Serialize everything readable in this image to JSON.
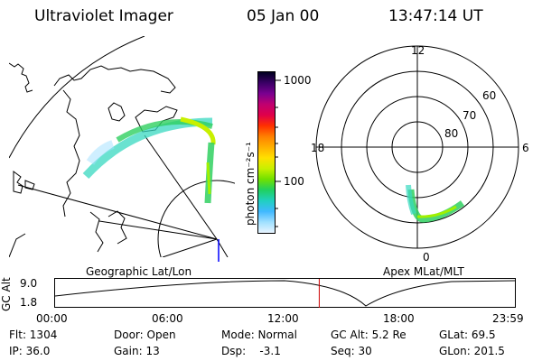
{
  "header": {
    "instrument": "Ultraviolet Imager",
    "date": "05 Jan 00",
    "time": "13:47:14 UT"
  },
  "colorbar": {
    "unit_label": "photon cm⁻²s⁻¹",
    "ticks": [
      "1000",
      "100"
    ],
    "colors": [
      "#000020",
      "#3a0066",
      "#7a0090",
      "#c00070",
      "#e0004a",
      "#ff3000",
      "#ff8000",
      "#ffb000",
      "#ffe000",
      "#c8f000",
      "#70e000",
      "#20d060",
      "#20d0c0",
      "#40b8ff",
      "#a0e0ff",
      "#e8f4ff"
    ]
  },
  "panels": {
    "left_label": "Geographic Lat/Lon",
    "right_label": "Apex MLat/MLT"
  },
  "polar_plot": {
    "mlt_labels": {
      "top": "12",
      "left": "18",
      "right": "6",
      "bottom": "0"
    },
    "lat_labels": [
      "60",
      "70",
      "80"
    ]
  },
  "altitude_plot": {
    "ylabel": "GC Alt",
    "y_ticks": [
      "9.0",
      "1.8"
    ],
    "x_ticks": [
      "00:00",
      "06:00",
      "12:00",
      "18:00",
      "23:59"
    ],
    "current_time_hours": 13.787,
    "current_marker_color": "#cc0000"
  },
  "footer": {
    "row1": {
      "flt": "Flt: 1304",
      "door": "Door: Open",
      "mode": "Mode: Normal",
      "gcalt": "GC Alt: 5.2 Re",
      "glat": "GLat:  69.5"
    },
    "row2": {
      "ip": "IP: 36.0",
      "gain": "Gain: 13",
      "dsp": "Dsp:    -3.1",
      "seq": "Seq: 30",
      "glon": "GLon: 201.5"
    }
  }
}
